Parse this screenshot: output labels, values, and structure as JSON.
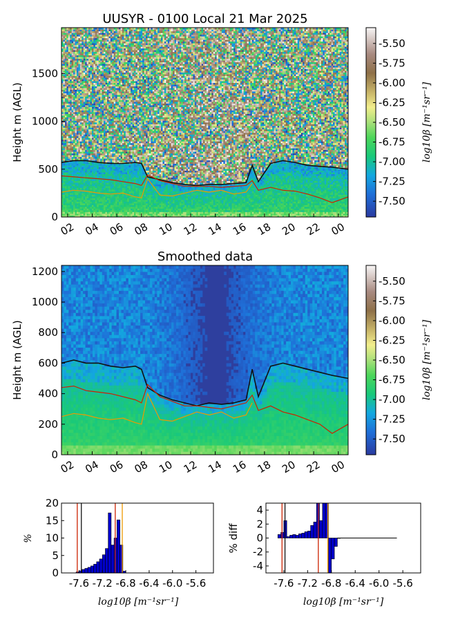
{
  "chart_data": [
    {
      "type": "heatmap",
      "title": "UUSYR - 0100 Local 21 Mar 2025",
      "ylabel": "Height m (AGL)",
      "xlabel": "",
      "x_tick_labels": [
        "02",
        "04",
        "06",
        "08",
        "10",
        "12",
        "14",
        "16",
        "18",
        "20",
        "22",
        "00"
      ],
      "x_range_hours": [
        1.5,
        24.8
      ],
      "ylim": [
        0,
        1980
      ],
      "y_ticks": [
        0,
        500,
        1000,
        1500
      ],
      "colorbar": {
        "label": "log10β [m⁻¹sr⁻¹]",
        "range": [
          -7.7,
          -5.3
        ],
        "ticks": [
          "-5.50",
          "-5.75",
          "-6.00",
          "-6.25",
          "-6.50",
          "-6.75",
          "-7.00",
          "-7.25",
          "-7.50"
        ]
      },
      "colors": {
        "black_line": "#111111",
        "red_line": "#cc2200",
        "orange_line": "#ee9900"
      },
      "series": [
        {
          "values_hours": [
            1.5,
            2.5,
            3.5,
            4.5,
            5.5,
            6.5,
            7.5,
            8.0,
            8.5,
            9.5,
            10.5,
            11.5,
            12.5,
            13.5,
            14.5,
            15.5,
            16.5,
            17.0,
            17.5,
            18.5,
            19.5,
            20.5,
            21.5,
            22.5,
            23.5,
            24.8
          ],
          "heights": [
            570,
            590,
            590,
            570,
            560,
            560,
            570,
            560,
            420,
            390,
            360,
            340,
            330,
            340,
            340,
            350,
            360,
            540,
            370,
            560,
            590,
            570,
            540,
            530,
            520,
            500
          ]
        },
        {
          "values_hours": [
            1.5,
            2.5,
            3.5,
            4.5,
            5.5,
            6.5,
            7.5,
            8.0,
            8.5,
            9.5,
            10.5,
            11.5,
            12.5,
            13.5,
            14.5,
            15.5,
            16.5,
            17.0,
            17.5,
            18.5,
            19.5,
            20.5,
            21.5,
            22.5,
            23.5,
            24.8
          ],
          "heights": [
            430,
            420,
            410,
            400,
            390,
            370,
            350,
            330,
            440,
            380,
            350,
            320,
            320,
            320,
            310,
            320,
            330,
            380,
            280,
            310,
            280,
            270,
            240,
            200,
            150,
            210
          ]
        },
        {
          "values_hours": [
            1.5,
            2.5,
            3.5,
            4.5,
            5.5,
            6.5,
            7.5,
            8.0,
            8.5,
            9.5,
            10.5,
            11.5,
            12.5,
            13.5,
            14.5,
            15.5,
            16.5,
            17.0
          ],
          "heights": [
            260,
            280,
            270,
            250,
            240,
            250,
            210,
            200,
            400,
            230,
            220,
            250,
            280,
            260,
            280,
            240,
            260,
            350
          ]
        }
      ]
    },
    {
      "type": "heatmap",
      "title": "Smoothed data",
      "ylabel": "Height m (AGL)",
      "x_tick_labels": [
        "02",
        "04",
        "06",
        "08",
        "10",
        "12",
        "14",
        "16",
        "18",
        "20",
        "22",
        "00"
      ],
      "x_range_hours": [
        1.5,
        24.8
      ],
      "ylim": [
        0,
        1240
      ],
      "y_ticks": [
        0,
        200,
        400,
        600,
        800,
        1000,
        1200
      ],
      "colorbar": {
        "label": "log10β [m⁻¹sr⁻¹]",
        "range": [
          -7.7,
          -5.3
        ],
        "ticks": [
          "-5.50",
          "-5.75",
          "-6.00",
          "-6.25",
          "-6.50",
          "-6.75",
          "-7.00",
          "-7.25",
          "-7.50"
        ]
      },
      "series": [
        {
          "values_hours": [
            1.5,
            2.5,
            3.5,
            4.5,
            5.5,
            6.5,
            7.5,
            8.0,
            8.5,
            9.5,
            10.5,
            11.5,
            12.5,
            13.5,
            14.5,
            15.5,
            16.5,
            17.0,
            17.5,
            18.5,
            19.5,
            20.5,
            21.5,
            22.5,
            23.5,
            24.8
          ],
          "heights": [
            600,
            620,
            600,
            600,
            580,
            570,
            580,
            560,
            440,
            390,
            360,
            340,
            320,
            340,
            330,
            340,
            360,
            560,
            380,
            580,
            600,
            580,
            560,
            540,
            520,
            500
          ]
        },
        {
          "values_hours": [
            1.5,
            2.5,
            3.5,
            4.5,
            5.5,
            6.5,
            7.5,
            8.0,
            8.5,
            9.5,
            10.5,
            11.5,
            12.5,
            13.5,
            14.5,
            15.5,
            16.5,
            17.0,
            17.5,
            18.5,
            19.5,
            20.5,
            21.5,
            22.5,
            23.5,
            24.8
          ],
          "heights": [
            440,
            450,
            420,
            410,
            400,
            380,
            360,
            340,
            460,
            380,
            350,
            320,
            320,
            310,
            300,
            320,
            340,
            390,
            290,
            320,
            280,
            260,
            230,
            200,
            140,
            200
          ]
        },
        {
          "values_hours": [
            1.5,
            2.5,
            3.5,
            4.5,
            5.5,
            6.5,
            7.5,
            8.0,
            8.5,
            9.5,
            10.5,
            11.5,
            12.5,
            13.5,
            14.5,
            15.5,
            16.5,
            17.0
          ],
          "heights": [
            250,
            270,
            260,
            240,
            230,
            240,
            210,
            200,
            400,
            230,
            220,
            250,
            280,
            260,
            280,
            240,
            260,
            340
          ]
        }
      ]
    },
    {
      "type": "bar",
      "title": "",
      "ylabel": "%",
      "xlabel": "log10β [m⁻¹sr⁻¹]",
      "x_tick_labels": [
        "-7.6",
        "-7.2",
        "-6.8",
        "-6.4",
        "-6.0",
        "-5.6"
      ],
      "xlim": [
        -7.9,
        -5.3
      ],
      "ylim": [
        0,
        20
      ],
      "y_ticks": [
        0,
        5,
        10,
        15,
        20
      ],
      "bin_width": 0.05,
      "bin_starts": [
        -7.65,
        -7.6,
        -7.55,
        -7.5,
        -7.45,
        -7.4,
        -7.35,
        -7.3,
        -7.25,
        -7.2,
        -7.15,
        -7.1,
        -7.05,
        -7.0,
        -6.95,
        -6.9,
        -6.85
      ],
      "values": [
        0.3,
        0.6,
        1.0,
        1.3,
        1.6,
        2.0,
        2.5,
        3.2,
        4.0,
        5.2,
        7.0,
        17.2,
        8.0,
        10.0,
        15.2,
        8.0,
        0.5
      ],
      "vlines": [
        {
          "x": -7.63,
          "color": "#cc2200"
        },
        {
          "x": -7.56,
          "color": "#111111"
        },
        {
          "x": -6.98,
          "color": "#cc2200"
        },
        {
          "x": -6.86,
          "color": "#ee9900"
        }
      ]
    },
    {
      "type": "bar",
      "title": "",
      "ylabel": "% diff",
      "xlabel": "log10β [m⁻¹sr⁻¹]",
      "x_tick_labels": [
        "-7.6",
        "-7.2",
        "-6.8",
        "-6.4",
        "-6.0",
        "-5.6"
      ],
      "xlim": [
        -7.9,
        -5.3
      ],
      "ylim": [
        -5,
        5
      ],
      "y_ticks": [
        4,
        2,
        0,
        -2,
        -4
      ],
      "bin_width": 0.05,
      "bin_starts": [
        -7.7,
        -7.65,
        -7.6,
        -7.55,
        -7.5,
        -7.45,
        -7.4,
        -7.35,
        -7.3,
        -7.25,
        -7.2,
        -7.15,
        -7.1,
        -7.05,
        -7.0,
        -6.95,
        -6.9,
        -6.85,
        -6.8,
        -6.75,
        -6.7
      ],
      "values": [
        0.5,
        0.8,
        2.5,
        0.2,
        0.4,
        0.5,
        0.4,
        0.6,
        0.7,
        0.9,
        1.0,
        1.8,
        2.3,
        5.0,
        2.5,
        5.0,
        5.0,
        -5.0,
        -3.0,
        -1.2,
        0.0
      ],
      "flat_line_until": -5.7,
      "vlines": [
        {
          "x": -7.63,
          "color": "#cc2200"
        },
        {
          "x": -7.58,
          "color": "#111111"
        },
        {
          "x": -7.02,
          "color": "#cc2200"
        },
        {
          "x": -6.86,
          "color": "#ee9900"
        }
      ]
    }
  ]
}
